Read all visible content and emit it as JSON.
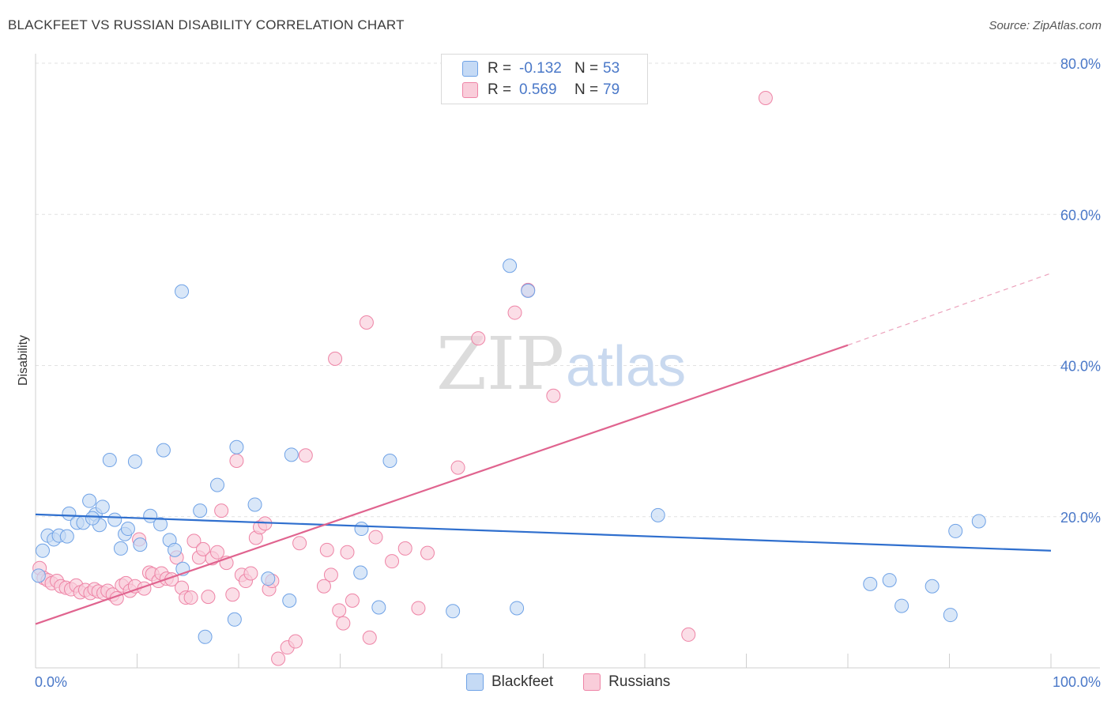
{
  "header": {
    "title": "BLACKFEET VS RUSSIAN DISABILITY CORRELATION CHART",
    "source": "Source: ZipAtlas.com"
  },
  "legend": {
    "rows": [
      {
        "r_label": "R =",
        "r_value": "-0.132",
        "n_label": "N =",
        "n_value": "53",
        "color": "#a9c8f0"
      },
      {
        "r_label": "R =",
        "r_value": "0.569",
        "n_label": "N =",
        "n_value": "79",
        "color": "#f7b8cc"
      }
    ]
  },
  "bottom_legend": {
    "blackfeet": "Blackfeet",
    "russians": "Russians"
  },
  "watermark": {
    "zip": "ZIP",
    "atlas": "atlas"
  },
  "chart_data": {
    "type": "scatter",
    "ylabel": "Disability",
    "xlim": [
      0,
      100
    ],
    "ylim": [
      0,
      80
    ],
    "y_ticks": [
      {
        "value": 80,
        "label": "80.0%"
      },
      {
        "value": 60,
        "label": "60.0%"
      },
      {
        "value": 40,
        "label": "40.0%"
      },
      {
        "value": 20,
        "label": "20.0%"
      }
    ],
    "x_tick_labels": {
      "left": "0.0%",
      "right": "100.0%"
    },
    "colors": {
      "blackfeet": "#6fa2e6",
      "blackfeet_fill": "#c5daf5",
      "russians": "#ee84a6",
      "russians_fill": "#f9cdda",
      "blue_line": "#2f6fce",
      "pink_line": "#e0648f"
    },
    "series": [
      {
        "name": "Blackfeet",
        "points": [
          [
            0.7,
            15.5
          ],
          [
            1.2,
            17.5
          ],
          [
            1.8,
            17.0
          ],
          [
            2.3,
            17.5
          ],
          [
            3.1,
            17.4
          ],
          [
            3.3,
            20.4
          ],
          [
            4.1,
            19.2
          ],
          [
            4.7,
            19.2
          ],
          [
            5.3,
            22.1
          ],
          [
            5.9,
            20.3
          ],
          [
            6.3,
            18.9
          ],
          [
            6.6,
            21.3
          ],
          [
            7.3,
            27.5
          ],
          [
            7.8,
            19.6
          ],
          [
            8.4,
            15.8
          ],
          [
            8.8,
            17.7
          ],
          [
            9.1,
            18.4
          ],
          [
            9.8,
            27.3
          ],
          [
            10.3,
            16.3
          ],
          [
            11.3,
            20.1
          ],
          [
            12.3,
            19.0
          ],
          [
            12.6,
            28.8
          ],
          [
            13.2,
            16.9
          ],
          [
            13.7,
            15.6
          ],
          [
            14.5,
            13.1
          ],
          [
            14.4,
            49.8
          ],
          [
            16.2,
            20.8
          ],
          [
            16.7,
            4.1
          ],
          [
            17.9,
            24.2
          ],
          [
            19.6,
            6.4
          ],
          [
            19.8,
            29.2
          ],
          [
            21.6,
            21.6
          ],
          [
            22.9,
            11.8
          ],
          [
            25.2,
            28.2
          ],
          [
            25.0,
            8.9
          ],
          [
            32.1,
            18.4
          ],
          [
            32.0,
            12.6
          ],
          [
            33.8,
            8.0
          ],
          [
            34.9,
            27.4
          ],
          [
            41.1,
            7.5
          ],
          [
            46.7,
            53.2
          ],
          [
            47.4,
            7.9
          ],
          [
            48.5,
            49.9
          ],
          [
            61.3,
            20.2
          ],
          [
            82.2,
            11.1
          ],
          [
            84.1,
            11.6
          ],
          [
            85.3,
            8.2
          ],
          [
            88.3,
            10.8
          ],
          [
            90.1,
            7.0
          ],
          [
            90.6,
            18.1
          ],
          [
            92.9,
            19.4
          ],
          [
            0.3,
            12.2
          ],
          [
            5.6,
            19.8
          ]
        ]
      },
      {
        "name": "Russians",
        "points": [
          [
            0.4,
            13.2
          ],
          [
            0.8,
            11.9
          ],
          [
            1.2,
            11.6
          ],
          [
            1.6,
            11.2
          ],
          [
            2.1,
            11.5
          ],
          [
            2.5,
            10.8
          ],
          [
            3.0,
            10.6
          ],
          [
            3.5,
            10.4
          ],
          [
            4.0,
            10.9
          ],
          [
            4.4,
            10.0
          ],
          [
            4.9,
            10.3
          ],
          [
            5.4,
            9.9
          ],
          [
            5.8,
            10.4
          ],
          [
            6.2,
            10.1
          ],
          [
            6.7,
            9.9
          ],
          [
            7.1,
            10.2
          ],
          [
            7.6,
            9.7
          ],
          [
            8.0,
            9.2
          ],
          [
            8.5,
            10.9
          ],
          [
            8.9,
            11.2
          ],
          [
            9.3,
            10.2
          ],
          [
            9.8,
            10.8
          ],
          [
            10.2,
            17.0
          ],
          [
            10.7,
            10.5
          ],
          [
            11.2,
            12.6
          ],
          [
            11.5,
            12.4
          ],
          [
            12.1,
            11.5
          ],
          [
            12.4,
            12.5
          ],
          [
            12.9,
            11.8
          ],
          [
            13.4,
            11.7
          ],
          [
            13.9,
            14.6
          ],
          [
            14.4,
            10.6
          ],
          [
            14.8,
            9.3
          ],
          [
            15.3,
            9.3
          ],
          [
            15.6,
            16.8
          ],
          [
            16.1,
            14.6
          ],
          [
            16.5,
            15.7
          ],
          [
            17.0,
            9.4
          ],
          [
            17.4,
            14.5
          ],
          [
            17.9,
            15.3
          ],
          [
            18.3,
            20.8
          ],
          [
            18.8,
            13.9
          ],
          [
            19.4,
            9.7
          ],
          [
            19.8,
            27.4
          ],
          [
            20.3,
            12.3
          ],
          [
            20.7,
            11.5
          ],
          [
            21.2,
            12.5
          ],
          [
            21.7,
            17.2
          ],
          [
            22.1,
            18.6
          ],
          [
            22.6,
            19.1
          ],
          [
            23.0,
            10.4
          ],
          [
            23.3,
            11.5
          ],
          [
            23.9,
            1.2
          ],
          [
            24.8,
            2.7
          ],
          [
            25.6,
            3.5
          ],
          [
            26.0,
            16.5
          ],
          [
            26.6,
            28.1
          ],
          [
            28.4,
            10.8
          ],
          [
            28.7,
            15.6
          ],
          [
            29.1,
            12.3
          ],
          [
            29.5,
            40.9
          ],
          [
            29.9,
            7.6
          ],
          [
            30.3,
            5.9
          ],
          [
            30.7,
            15.3
          ],
          [
            31.2,
            8.9
          ],
          [
            32.6,
            45.7
          ],
          [
            32.9,
            4.0
          ],
          [
            33.5,
            17.3
          ],
          [
            35.1,
            14.1
          ],
          [
            36.4,
            15.8
          ],
          [
            37.7,
            7.9
          ],
          [
            38.6,
            15.2
          ],
          [
            41.6,
            26.5
          ],
          [
            43.6,
            43.6
          ],
          [
            47.2,
            47.0
          ],
          [
            48.5,
            50.0
          ],
          [
            51.0,
            36.0
          ],
          [
            64.3,
            4.4
          ],
          [
            71.9,
            75.4
          ]
        ]
      }
    ],
    "trend_lines": [
      {
        "name": "Blackfeet",
        "from": [
          0,
          20.3
        ],
        "to": [
          100,
          15.5
        ],
        "style": "solid"
      },
      {
        "name": "Russians",
        "from": [
          0,
          5.8
        ],
        "to": [
          80,
          42.7
        ],
        "style": "solid"
      },
      {
        "name": "Russians",
        "from": [
          80,
          42.7
        ],
        "to": [
          100,
          52.2
        ],
        "style": "dashed"
      }
    ]
  }
}
